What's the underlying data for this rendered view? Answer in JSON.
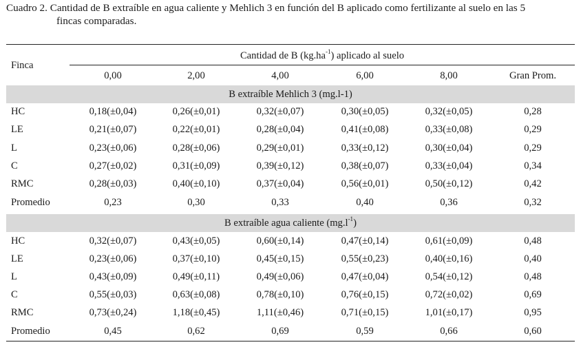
{
  "caption": {
    "label": "Cuadro 2.",
    "line1": "Cantidad de B extraíble en agua caliente y Mehlich 3 en función del B aplicado como fertilizante al suelo en las 5",
    "line2": "fincas comparadas."
  },
  "header": {
    "row_label": "Finca",
    "group_title_pre": "Cantidad de B (kg.ha",
    "group_title_sup": "-1",
    "group_title_post": ") aplicado al suelo",
    "columns": [
      "0,00",
      "2,00",
      "4,00",
      "6,00",
      "8,00",
      "Gran Prom."
    ]
  },
  "sections": [
    {
      "title": "B extraíble Mehlich 3 (mg.l-1)",
      "rows": [
        {
          "finca": "HC",
          "values": [
            "0,18(±0,04)",
            "0,26(±0,01)",
            "0,32(±0,07)",
            "0,30(±0,05)",
            "0,32(±0,05)",
            "0,28"
          ]
        },
        {
          "finca": "LE",
          "values": [
            "0,21(±0,07)",
            "0,22(±0,01)",
            "0,28(±0,04)",
            "0,41(±0,08)",
            "0,33(±0,08)",
            "0,29"
          ]
        },
        {
          "finca": "L",
          "values": [
            "0,23(±0,06)",
            "0,28(±0,06)",
            "0,29(±0,01)",
            "0,33(±0,12)",
            "0,30(±0,04)",
            "0,29"
          ]
        },
        {
          "finca": "C",
          "values": [
            "0,27(±0,02)",
            "0,31(±0,09)",
            "0,39(±0,12)",
            "0,38(±0,07)",
            "0,33(±0,04)",
            "0,34"
          ]
        },
        {
          "finca": "RMC",
          "values": [
            "0,28(±0,03)",
            "0,40(±0,10)",
            "0,37(±0,04)",
            "0,56(±0,01)",
            "0,50(±0,12)",
            "0,42"
          ]
        },
        {
          "finca": "Promedio",
          "values": [
            "0,23",
            "0,30",
            "0,33",
            "0,40",
            "0,36",
            "0,32"
          ]
        }
      ]
    },
    {
      "title_pre": "B extraíble agua caliente (mg.l",
      "title_sup": "-1",
      "title_post": ")",
      "rows": [
        {
          "finca": "HC",
          "values": [
            "0,32(±0,07)",
            "0,43(±0,05)",
            "0,60(±0,14)",
            "0,47(±0,14)",
            "0,61(±0,09)",
            "0,48"
          ]
        },
        {
          "finca": "LE",
          "values": [
            "0,23(±0,06)",
            "0,37(±0,10)",
            "0,45(±0,15)",
            "0,55(±0,23)",
            "0,40(±0,16)",
            "0,40"
          ]
        },
        {
          "finca": "L",
          "values": [
            "0,43(±0,09)",
            "0,49(±0,11)",
            "0,49(±0,06)",
            "0,47(±0,04)",
            "0,54(±0,12)",
            "0,48"
          ]
        },
        {
          "finca": "C",
          "values": [
            "0,55(±0,03)",
            "0,63(±0,08)",
            "0,78(±0,10)",
            "0,76(±0,15)",
            "0,72(±0,02)",
            "0,69"
          ]
        },
        {
          "finca": "RMC",
          "values": [
            "0,73(±0,24)",
            "1,18(±0,45)",
            "1,11(±0,46)",
            "0,71(±0,15)",
            "1,01(±0,17)",
            "0,95"
          ]
        },
        {
          "finca": "Promedio",
          "values": [
            "0,45",
            "0,62",
            "0,69",
            "0,59",
            "0,66",
            "0,60"
          ]
        }
      ]
    }
  ]
}
